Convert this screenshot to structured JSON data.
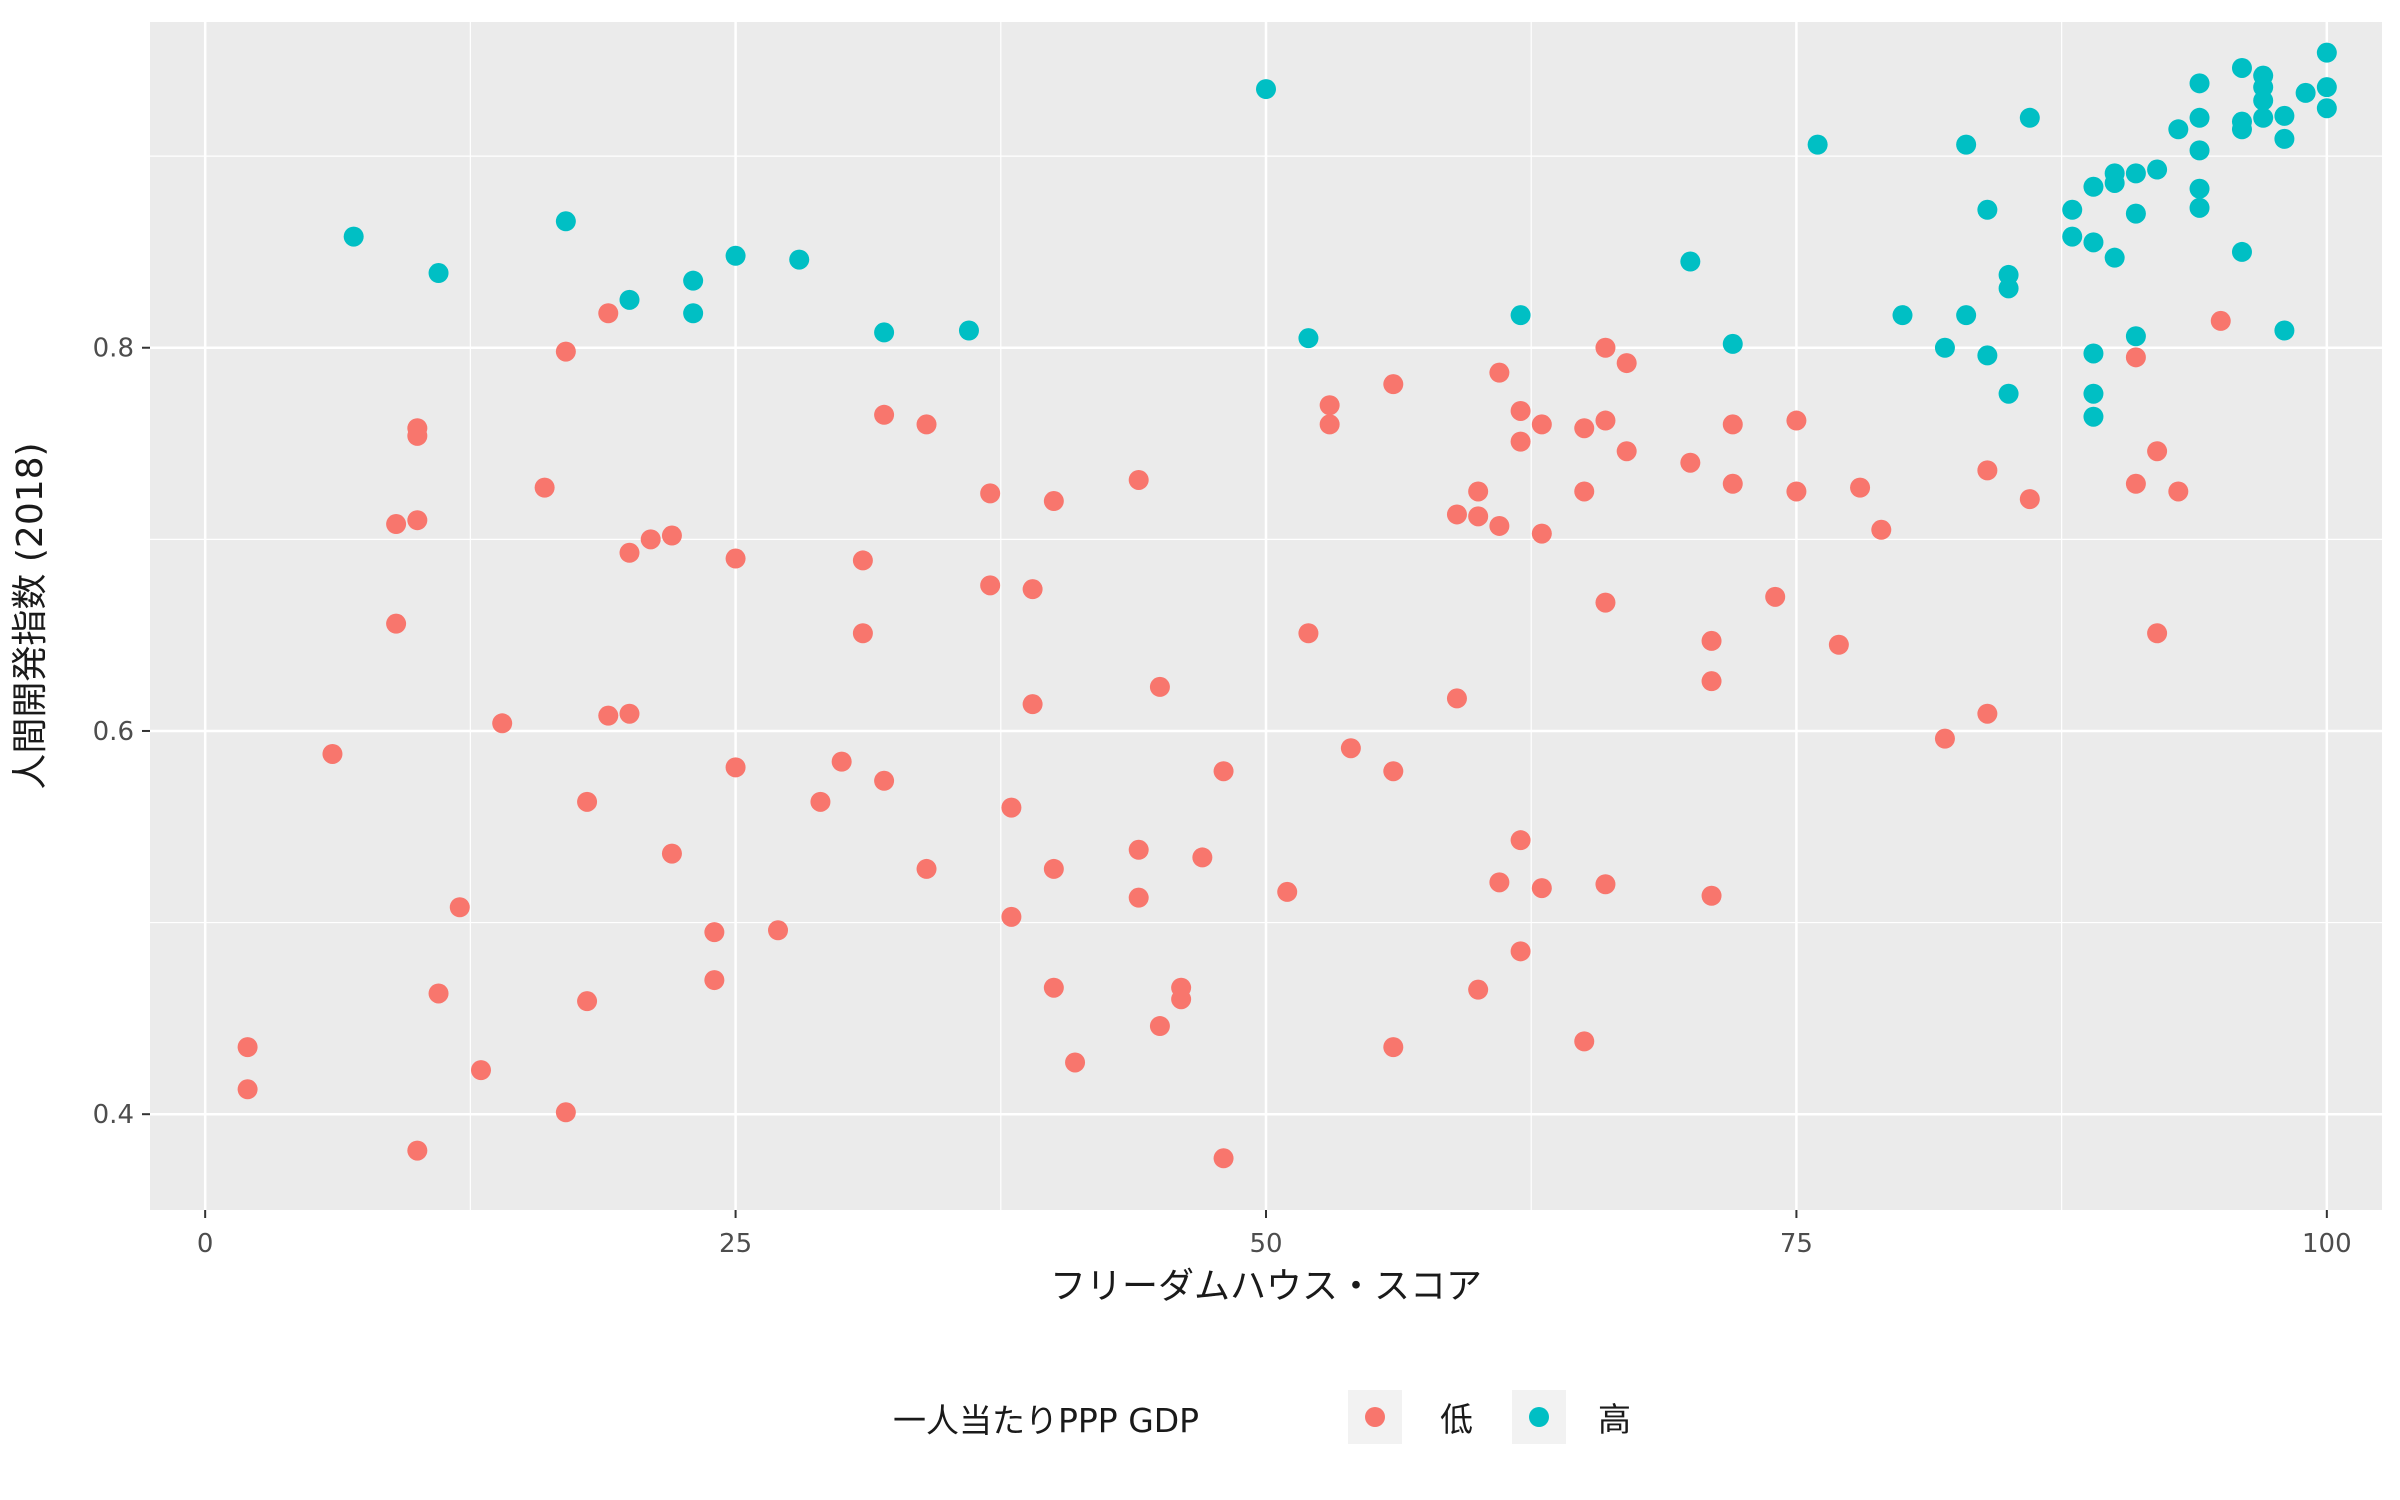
{
  "chart_data": {
    "type": "scatter",
    "xlabel": "フリーダムハウス・スコア",
    "ylabel": "人間開発指数 (2018)",
    "xlim": [
      -2.6,
      102.6
    ],
    "ylim": [
      0.35,
      0.97
    ],
    "x_ticks": [
      0,
      25,
      50,
      75,
      100
    ],
    "x_tick_labels": [
      "0",
      "25",
      "50",
      "75",
      "100"
    ],
    "y_ticks": [
      0.4,
      0.6,
      0.8
    ],
    "y_tick_labels": [
      "0.4",
      "0.6",
      "0.8"
    ],
    "grid": true,
    "legend": {
      "title": "一人当たりPPP GDP",
      "placement": "bottom",
      "entries": [
        "低",
        "高"
      ]
    },
    "colors": {
      "低": "#F8766D",
      "高": "#00BFC4",
      "panel": "#EBEBEB",
      "grid": "#FFFFFF"
    },
    "series": [
      {
        "name": "低",
        "points": [
          [
            2,
            0.435
          ],
          [
            2,
            0.413
          ],
          [
            6,
            0.588
          ],
          [
            9,
            0.708
          ],
          [
            9,
            0.656
          ],
          [
            10,
            0.758
          ],
          [
            10,
            0.754
          ],
          [
            10,
            0.71
          ],
          [
            10,
            0.381
          ],
          [
            11,
            0.463
          ],
          [
            12,
            0.508
          ],
          [
            13,
            0.423
          ],
          [
            14,
            0.604
          ],
          [
            16,
            0.727
          ],
          [
            17,
            0.798
          ],
          [
            17,
            0.401
          ],
          [
            18,
            0.563
          ],
          [
            18,
            0.459
          ],
          [
            19,
            0.818
          ],
          [
            19,
            0.608
          ],
          [
            20,
            0.693
          ],
          [
            20,
            0.609
          ],
          [
            21,
            0.7
          ],
          [
            22,
            0.702
          ],
          [
            22,
            0.536
          ],
          [
            24,
            0.495
          ],
          [
            24,
            0.47
          ],
          [
            25,
            0.69
          ],
          [
            25,
            0.581
          ],
          [
            27,
            0.496
          ],
          [
            29,
            0.563
          ],
          [
            30,
            0.584
          ],
          [
            31,
            0.689
          ],
          [
            31,
            0.651
          ],
          [
            32,
            0.765
          ],
          [
            32,
            0.574
          ],
          [
            34,
            0.76
          ],
          [
            34,
            0.528
          ],
          [
            37,
            0.724
          ],
          [
            37,
            0.676
          ],
          [
            38,
            0.56
          ],
          [
            38,
            0.503
          ],
          [
            39,
            0.674
          ],
          [
            39,
            0.614
          ],
          [
            40,
            0.72
          ],
          [
            40,
            0.528
          ],
          [
            40,
            0.466
          ],
          [
            41,
            0.427
          ],
          [
            44,
            0.731
          ],
          [
            44,
            0.538
          ],
          [
            44,
            0.513
          ],
          [
            45,
            0.623
          ],
          [
            45,
            0.446
          ],
          [
            46,
            0.466
          ],
          [
            46,
            0.46
          ],
          [
            47,
            0.534
          ],
          [
            48,
            0.579
          ],
          [
            48,
            0.377
          ],
          [
            51,
            0.516
          ],
          [
            52,
            0.651
          ],
          [
            53,
            0.77
          ],
          [
            53,
            0.76
          ],
          [
            54,
            0.591
          ],
          [
            56,
            0.781
          ],
          [
            56,
            0.579
          ],
          [
            56,
            0.435
          ],
          [
            59,
            0.713
          ],
          [
            59,
            0.617
          ],
          [
            60,
            0.725
          ],
          [
            60,
            0.712
          ],
          [
            60,
            0.465
          ],
          [
            61,
            0.787
          ],
          [
            61,
            0.707
          ],
          [
            61,
            0.521
          ],
          [
            62,
            0.767
          ],
          [
            62,
            0.751
          ],
          [
            62,
            0.543
          ],
          [
            62,
            0.485
          ],
          [
            63,
            0.76
          ],
          [
            63,
            0.703
          ],
          [
            63,
            0.518
          ],
          [
            65,
            0.758
          ],
          [
            65,
            0.725
          ],
          [
            65,
            0.438
          ],
          [
            66,
            0.8
          ],
          [
            66,
            0.762
          ],
          [
            66,
            0.667
          ],
          [
            66,
            0.52
          ],
          [
            67,
            0.792
          ],
          [
            67,
            0.746
          ],
          [
            70,
            0.74
          ],
          [
            71,
            0.647
          ],
          [
            71,
            0.626
          ],
          [
            71,
            0.514
          ],
          [
            72,
            0.76
          ],
          [
            72,
            0.729
          ],
          [
            74,
            0.67
          ],
          [
            75,
            0.762
          ],
          [
            75,
            0.725
          ],
          [
            77,
            0.645
          ],
          [
            78,
            0.727
          ],
          [
            79,
            0.705
          ],
          [
            82,
            0.596
          ],
          [
            84,
            0.736
          ],
          [
            84,
            0.609
          ],
          [
            86,
            0.721
          ],
          [
            91,
            0.795
          ],
          [
            91,
            0.729
          ],
          [
            92,
            0.746
          ],
          [
            92,
            0.651
          ],
          [
            93,
            0.725
          ],
          [
            95,
            0.814
          ]
        ]
      },
      {
        "name": "高",
        "points": [
          [
            7,
            0.858
          ],
          [
            11,
            0.839
          ],
          [
            17,
            0.866
          ],
          [
            20,
            0.825
          ],
          [
            23,
            0.835
          ],
          [
            23,
            0.818
          ],
          [
            25,
            0.848
          ],
          [
            28,
            0.846
          ],
          [
            32,
            0.808
          ],
          [
            36,
            0.809
          ],
          [
            50,
            0.935
          ],
          [
            52,
            0.805
          ],
          [
            62,
            0.817
          ],
          [
            70,
            0.845
          ],
          [
            72,
            0.802
          ],
          [
            76,
            0.906
          ],
          [
            80,
            0.817
          ],
          [
            82,
            0.8
          ],
          [
            83,
            0.906
          ],
          [
            83,
            0.817
          ],
          [
            84,
            0.872
          ],
          [
            84,
            0.796
          ],
          [
            85,
            0.838
          ],
          [
            85,
            0.831
          ],
          [
            85,
            0.776
          ],
          [
            86,
            0.92
          ],
          [
            88,
            0.872
          ],
          [
            88,
            0.858
          ],
          [
            89,
            0.884
          ],
          [
            89,
            0.855
          ],
          [
            89,
            0.797
          ],
          [
            89,
            0.776
          ],
          [
            89,
            0.764
          ],
          [
            90,
            0.891
          ],
          [
            90,
            0.886
          ],
          [
            90,
            0.847
          ],
          [
            91,
            0.891
          ],
          [
            91,
            0.87
          ],
          [
            91,
            0.806
          ],
          [
            92,
            0.893
          ],
          [
            93,
            0.914
          ],
          [
            94,
            0.938
          ],
          [
            94,
            0.92
          ],
          [
            94,
            0.903
          ],
          [
            94,
            0.883
          ],
          [
            94,
            0.873
          ],
          [
            96,
            0.946
          ],
          [
            96,
            0.918
          ],
          [
            96,
            0.914
          ],
          [
            96,
            0.85
          ],
          [
            97,
            0.942
          ],
          [
            97,
            0.936
          ],
          [
            97,
            0.929
          ],
          [
            97,
            0.92
          ],
          [
            98,
            0.921
          ],
          [
            98,
            0.909
          ],
          [
            98,
            0.809
          ],
          [
            99,
            0.933
          ],
          [
            100,
            0.954
          ],
          [
            100,
            0.936
          ],
          [
            100,
            0.925
          ]
        ]
      }
    ]
  }
}
